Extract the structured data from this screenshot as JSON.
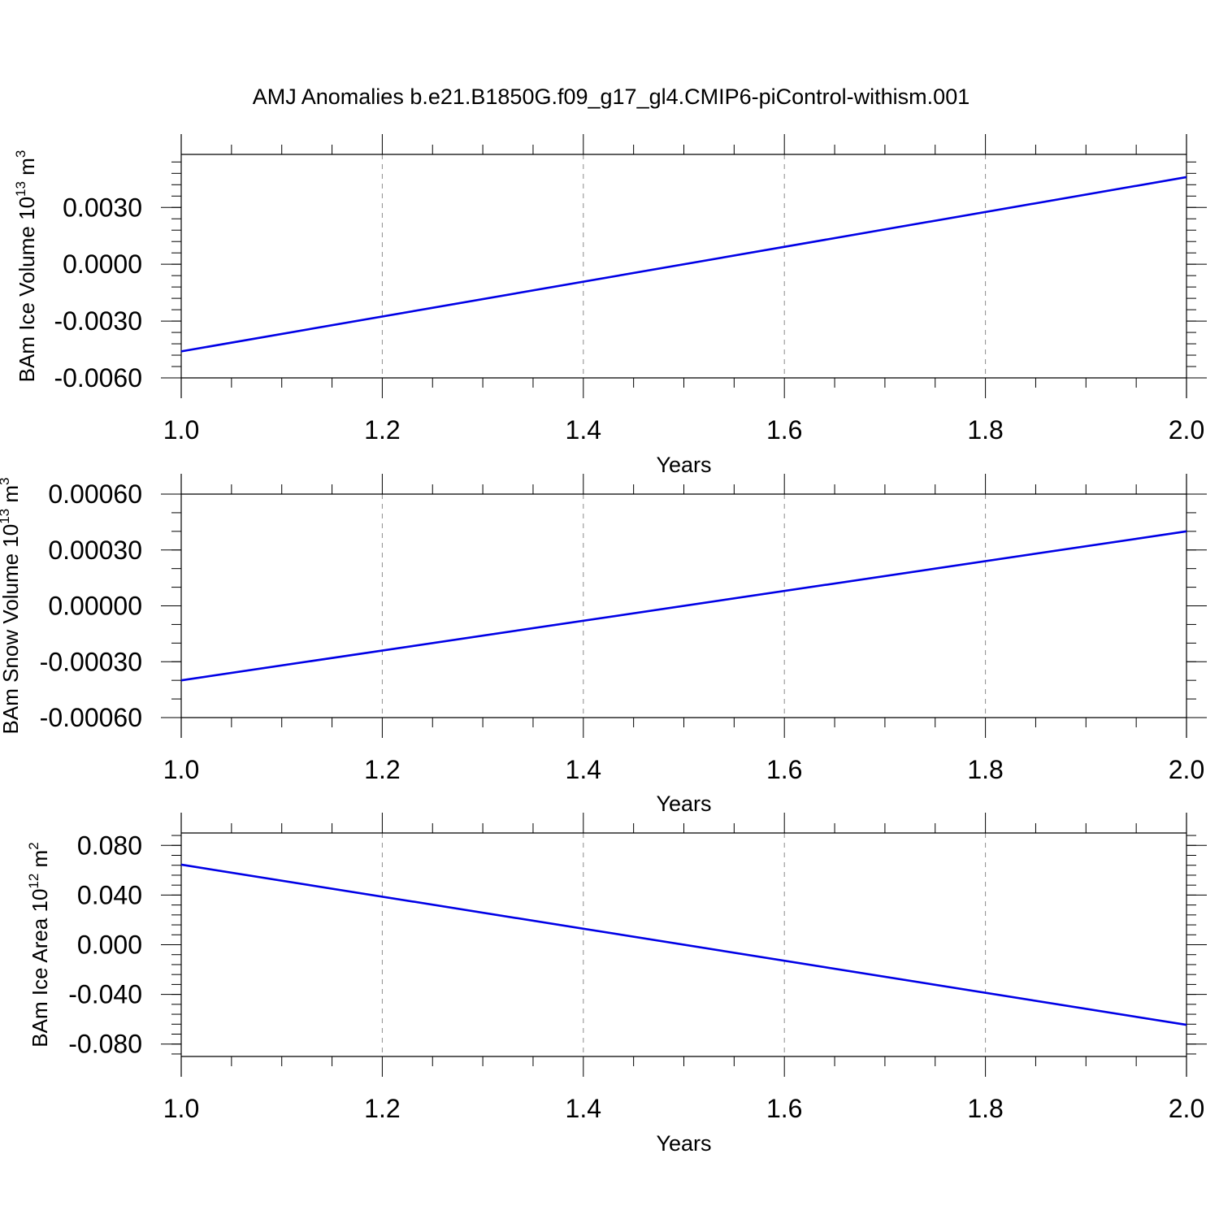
{
  "title": "AMJ Anomalies b.e21.B1850G.f09_g17_gl4.CMIP6-piControl-withism.001",
  "colors": {
    "series": "#0000e6",
    "axis": "#000000",
    "grid": "#8c8c8c"
  },
  "chart_data": [
    {
      "type": "line",
      "xlabel": "Years",
      "ylabel": {
        "text": "BAm Ice Volume 10",
        "exp": "13",
        "unit": " m",
        "unit_exp": "3"
      },
      "xlim": [
        1.0,
        2.0
      ],
      "ylim": [
        -0.006,
        0.0058
      ],
      "x_ticks": [
        "1.0",
        "1.2",
        "1.4",
        "1.6",
        "1.8",
        "2.0"
      ],
      "x_tick_values": [
        1.0,
        1.2,
        1.4,
        1.6,
        1.8,
        2.0
      ],
      "y_ticks": [
        "0.0030",
        "0.0000",
        "-0.0030",
        "-0.0060"
      ],
      "y_tick_values": [
        0.003,
        0.0,
        -0.003,
        -0.006
      ],
      "y_minor_step": 0.0006,
      "grid": "x-dashed",
      "series": [
        {
          "x": [
            1.0,
            2.0
          ],
          "y": [
            -0.0046,
            0.0046
          ]
        }
      ]
    },
    {
      "type": "line",
      "xlabel": "Years",
      "ylabel": {
        "text": "BAm Snow Volume 10",
        "exp": "13",
        "unit": " m",
        "unit_exp": "3"
      },
      "xlim": [
        1.0,
        2.0
      ],
      "ylim": [
        -0.0006,
        0.0006
      ],
      "x_ticks": [
        "1.0",
        "1.2",
        "1.4",
        "1.6",
        "1.8",
        "2.0"
      ],
      "x_tick_values": [
        1.0,
        1.2,
        1.4,
        1.6,
        1.8,
        2.0
      ],
      "y_ticks": [
        "0.00060",
        "0.00030",
        "0.00000",
        "-0.00030",
        "-0.00060"
      ],
      "y_tick_values": [
        0.0006,
        0.0003,
        0.0,
        -0.0003,
        -0.0006
      ],
      "y_minor_step": 0.0001,
      "grid": "x-dashed",
      "series": [
        {
          "x": [
            1.0,
            2.0
          ],
          "y": [
            -0.0004,
            0.0004
          ]
        }
      ]
    },
    {
      "type": "line",
      "xlabel": "Years",
      "ylabel": {
        "text": "BAm Ice Area 10",
        "exp": "12",
        "unit": " m",
        "unit_exp": "2"
      },
      "xlim": [
        1.0,
        2.0
      ],
      "ylim": [
        -0.09,
        0.09
      ],
      "x_ticks": [
        "1.0",
        "1.2",
        "1.4",
        "1.6",
        "1.8",
        "2.0"
      ],
      "x_tick_values": [
        1.0,
        1.2,
        1.4,
        1.6,
        1.8,
        2.0
      ],
      "y_ticks": [
        "0.080",
        "0.040",
        "0.000",
        "-0.040",
        "-0.080"
      ],
      "y_tick_values": [
        0.08,
        0.04,
        0.0,
        -0.04,
        -0.08
      ],
      "y_minor_step": 0.008,
      "grid": "x-dashed",
      "series": [
        {
          "x": [
            1.0,
            2.0
          ],
          "y": [
            0.0645,
            -0.0645
          ]
        }
      ]
    }
  ]
}
